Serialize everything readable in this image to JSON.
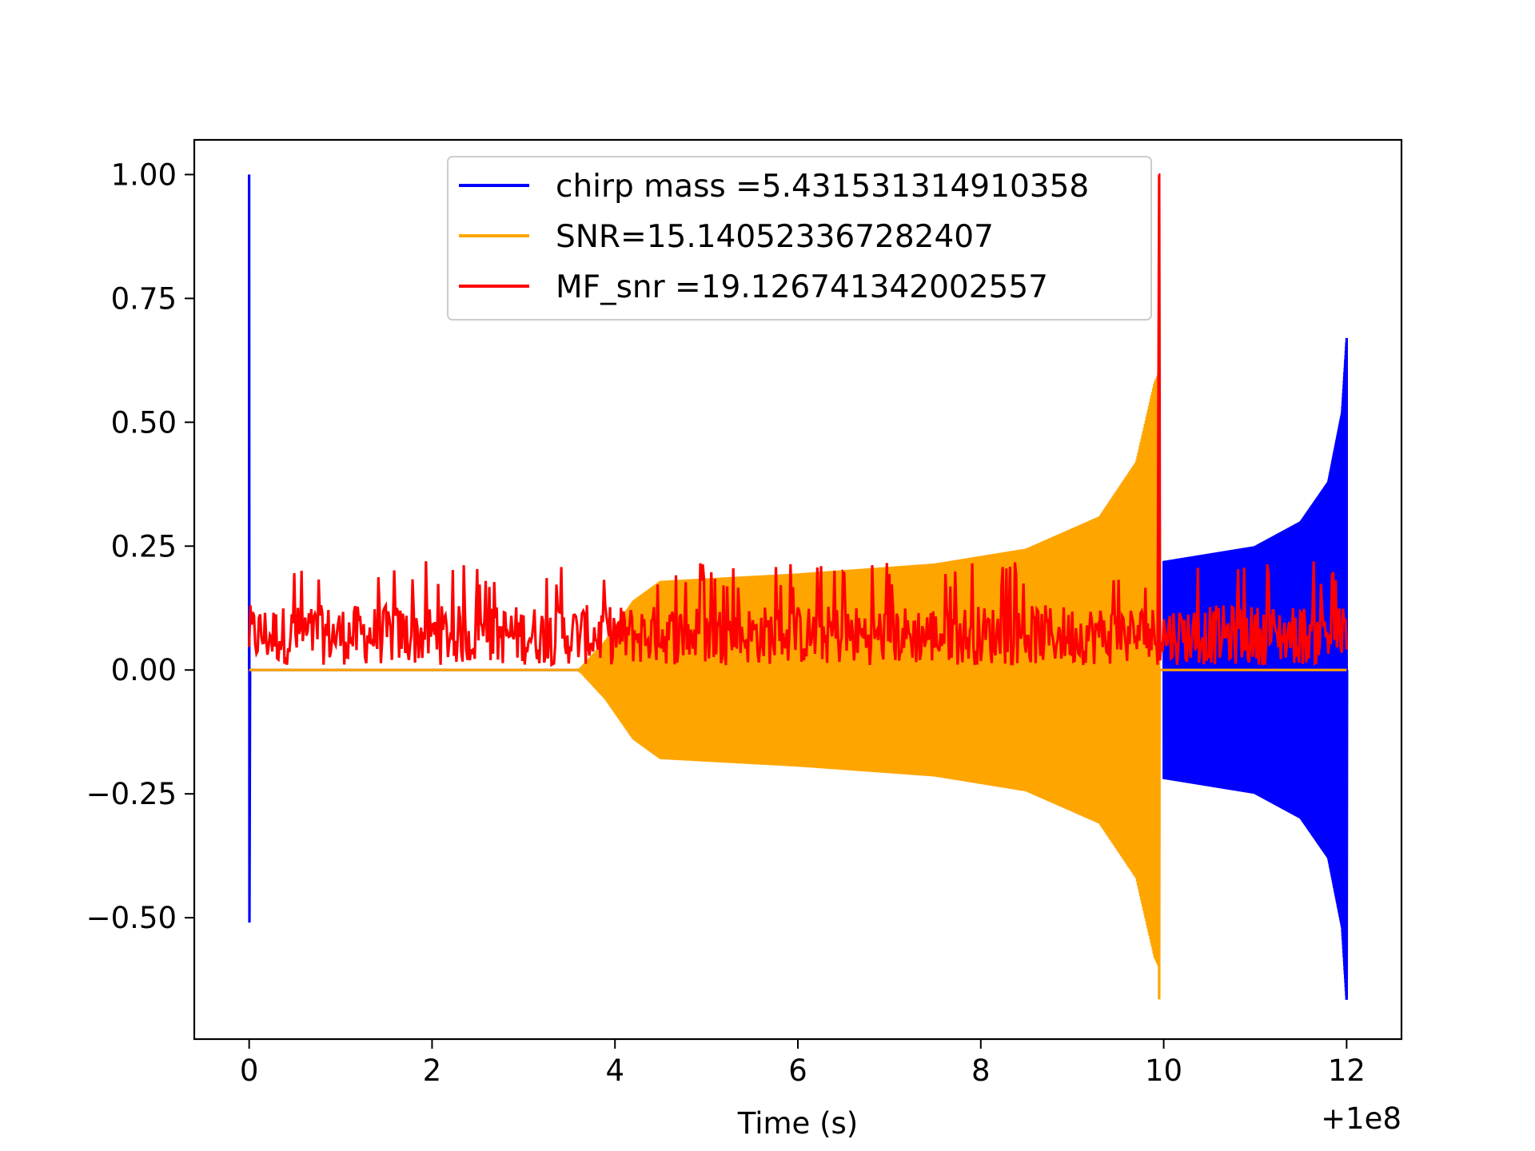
{
  "chart_data": {
    "type": "line",
    "title": "",
    "xlabel": "Time (s)",
    "ylabel": "",
    "x_offset_label": "+1e8",
    "xlim": [
      -0.6,
      12.6
    ],
    "ylim": [
      -0.745,
      1.07
    ],
    "x_ticks": [
      {
        "value": 0,
        "label": "0"
      },
      {
        "value": 2,
        "label": "2"
      },
      {
        "value": 4,
        "label": "4"
      },
      {
        "value": 6,
        "label": "6"
      },
      {
        "value": 8,
        "label": "8"
      },
      {
        "value": 10,
        "label": "10"
      },
      {
        "value": 12,
        "label": "12"
      }
    ],
    "y_ticks": [
      {
        "value": 1.0,
        "label": "1.00"
      },
      {
        "value": 0.75,
        "label": "0.75"
      },
      {
        "value": 0.5,
        "label": "0.50"
      },
      {
        "value": 0.25,
        "label": "0.25"
      },
      {
        "value": 0.0,
        "label": "0.00"
      },
      {
        "value": -0.25,
        "label": "−0.25"
      },
      {
        "value": -0.5,
        "label": "−0.50"
      }
    ],
    "grid": false,
    "legend_position": "top-center",
    "series": [
      {
        "name": "chirp mass =5.431531314910358",
        "color": "#0000ff",
        "kind": "chirp",
        "spike_t": 0.0,
        "spike_max": 1.0,
        "spike_min": -0.51,
        "start": 10.0,
        "end": 12.0,
        "envelope": [
          [
            10.0,
            0.22
          ],
          [
            11.0,
            0.25
          ],
          [
            11.5,
            0.3
          ],
          [
            11.8,
            0.38
          ],
          [
            11.95,
            0.52
          ],
          [
            12.0,
            0.67
          ]
        ],
        "final_min": -0.665
      },
      {
        "name": "SNR=15.140523367282407",
        "color": "#ffa500",
        "kind": "chirp",
        "start": 3.6,
        "end": 9.95,
        "envelope": [
          [
            3.6,
            0.0
          ],
          [
            3.9,
            0.06
          ],
          [
            4.2,
            0.14
          ],
          [
            4.5,
            0.18
          ],
          [
            6.0,
            0.195
          ],
          [
            7.5,
            0.215
          ],
          [
            8.5,
            0.245
          ],
          [
            9.3,
            0.31
          ],
          [
            9.7,
            0.42
          ],
          [
            9.9,
            0.58
          ],
          [
            9.95,
            0.6
          ]
        ],
        "final_min": -0.665
      },
      {
        "name": "MF_snr =19.126741342002557",
        "color": "#ff0000",
        "kind": "noise",
        "start": 0.0,
        "end": 12.0,
        "noise_range": [
          0.0,
          0.22
        ],
        "spike_t": 9.95,
        "spike_max": 1.0
      }
    ]
  }
}
